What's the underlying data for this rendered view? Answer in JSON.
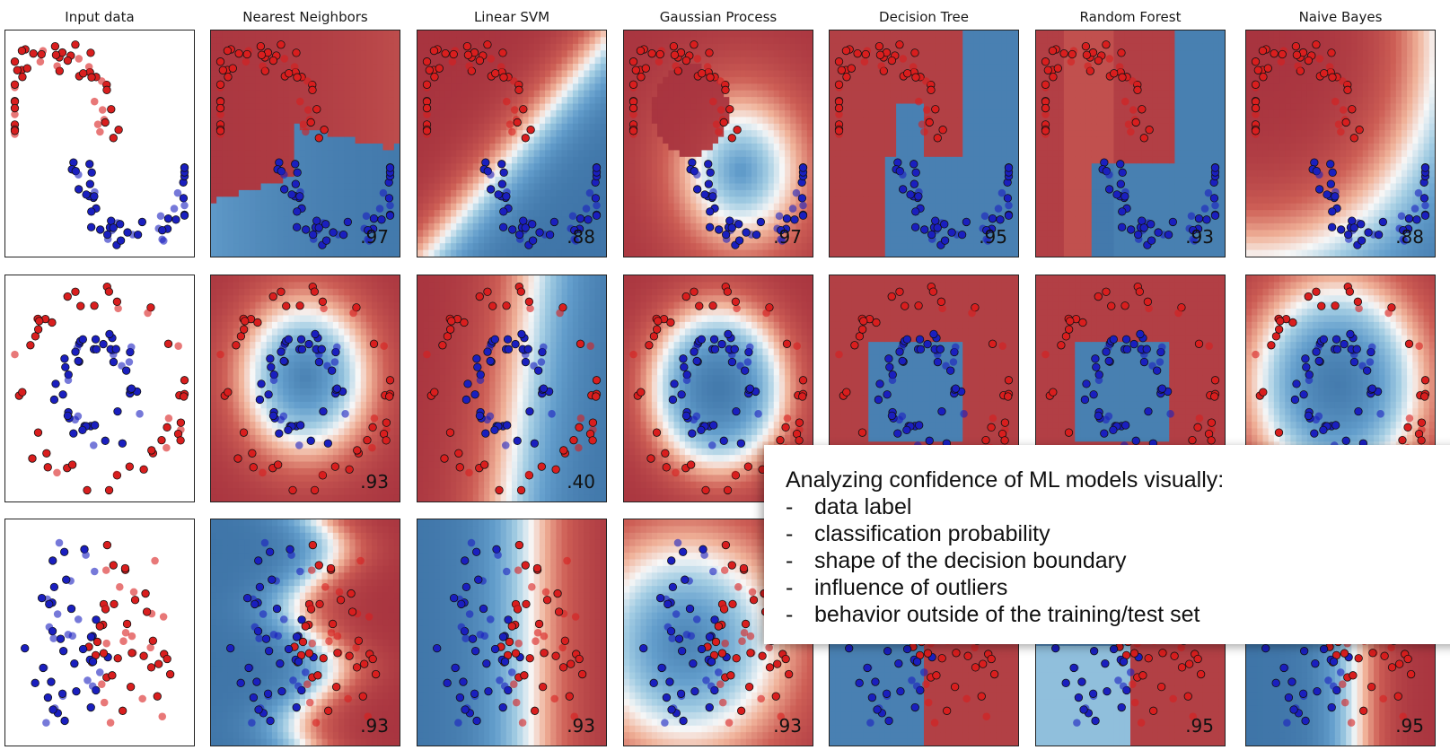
{
  "columns": [
    "Input data",
    "Nearest Neighbors",
    "Linear SVM",
    "Gaussian Process",
    "Decision Tree",
    "Random Forest",
    "Naive Bayes"
  ],
  "rows": [
    {
      "dataset": "moons",
      "scores": [
        "",
        ".97",
        ".88",
        ".97",
        ".95",
        ".93",
        ".88"
      ]
    },
    {
      "dataset": "circles",
      "scores": [
        "",
        ".93",
        ".40",
        "",
        "",
        "",
        ""
      ]
    },
    {
      "dataset": "linear",
      "scores": [
        "",
        ".93",
        ".93",
        ".93",
        "",
        ".95",
        ".95"
      ]
    }
  ],
  "callout": {
    "title": "Analyzing confidence of ML models visually:",
    "items": [
      "data label",
      "classification probability",
      "shape of the decision boundary",
      "influence of outliers",
      "behavior outside of the training/test set"
    ]
  },
  "colors": {
    "class_red": "#d91e1e",
    "class_blue": "#1a1fbf",
    "red_strong": "#a8343f",
    "blue_strong": "#3f75a8",
    "neutral": "#f7f7f7"
  }
}
